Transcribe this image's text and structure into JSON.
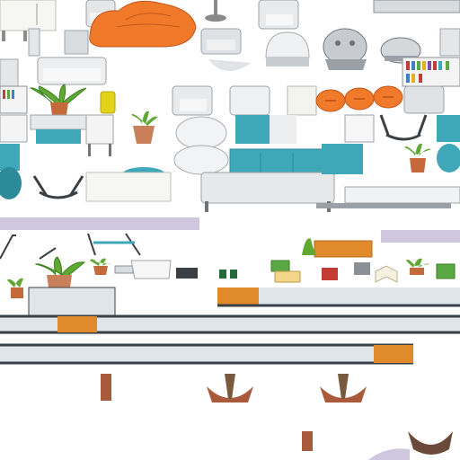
{
  "sheet": {
    "kind": "furniture tileset sprite sheet",
    "background": "#ffffff"
  },
  "palette": {
    "teal": "#3ea8b8",
    "teal_dark": "#2d8a99",
    "orange": "#f07a2a",
    "orange_dark": "#d45f12",
    "wood": "#e08a2c",
    "wood_dark": "#b86a1c",
    "white_furniture": "#f4f4f4",
    "grey_furniture": "#c8ccd0",
    "grey_dark": "#6e747a",
    "glass": "#dfe6ea",
    "frame_dark": "#3b4045",
    "plant_green": "#5fa832",
    "plant_dark": "#3d7d22",
    "pot": "#c9805a",
    "terracotta": "#b85a34",
    "trunk": "#7a5a3e",
    "yellow": "#e2d21a",
    "book_red": "#c43b34",
    "book_green": "#5aa843",
    "purple_shadow": "#cfc6e0",
    "mug": "#246b3a"
  },
  "sprites": [
    {
      "name": "cabinet-white",
      "icon": "cabinet"
    },
    {
      "name": "armchair-grey",
      "icon": "armchair"
    },
    {
      "name": "beanbag-orange",
      "icon": "beanbag"
    },
    {
      "name": "floor-lamp",
      "icon": "lamp"
    },
    {
      "name": "dome-stool",
      "icon": "stool"
    },
    {
      "name": "cushion-pouf",
      "icon": "pouf"
    },
    {
      "name": "sofa-grey",
      "icon": "sofa"
    },
    {
      "name": "bookshelf",
      "icon": "bookshelf"
    },
    {
      "name": "potted-palm",
      "icon": "plant"
    },
    {
      "name": "yellow-chair",
      "icon": "chair"
    },
    {
      "name": "orange-stools",
      "icon": "stools"
    },
    {
      "name": "sofa-teal",
      "icon": "sofa"
    },
    {
      "name": "round-table",
      "icon": "table"
    },
    {
      "name": "glass-railing",
      "icon": "railing"
    },
    {
      "name": "wood-bench",
      "icon": "bench"
    },
    {
      "name": "tree-planter",
      "icon": "tree"
    },
    {
      "name": "books-stack",
      "icon": "books"
    },
    {
      "name": "mugs",
      "icon": "mug"
    }
  ]
}
